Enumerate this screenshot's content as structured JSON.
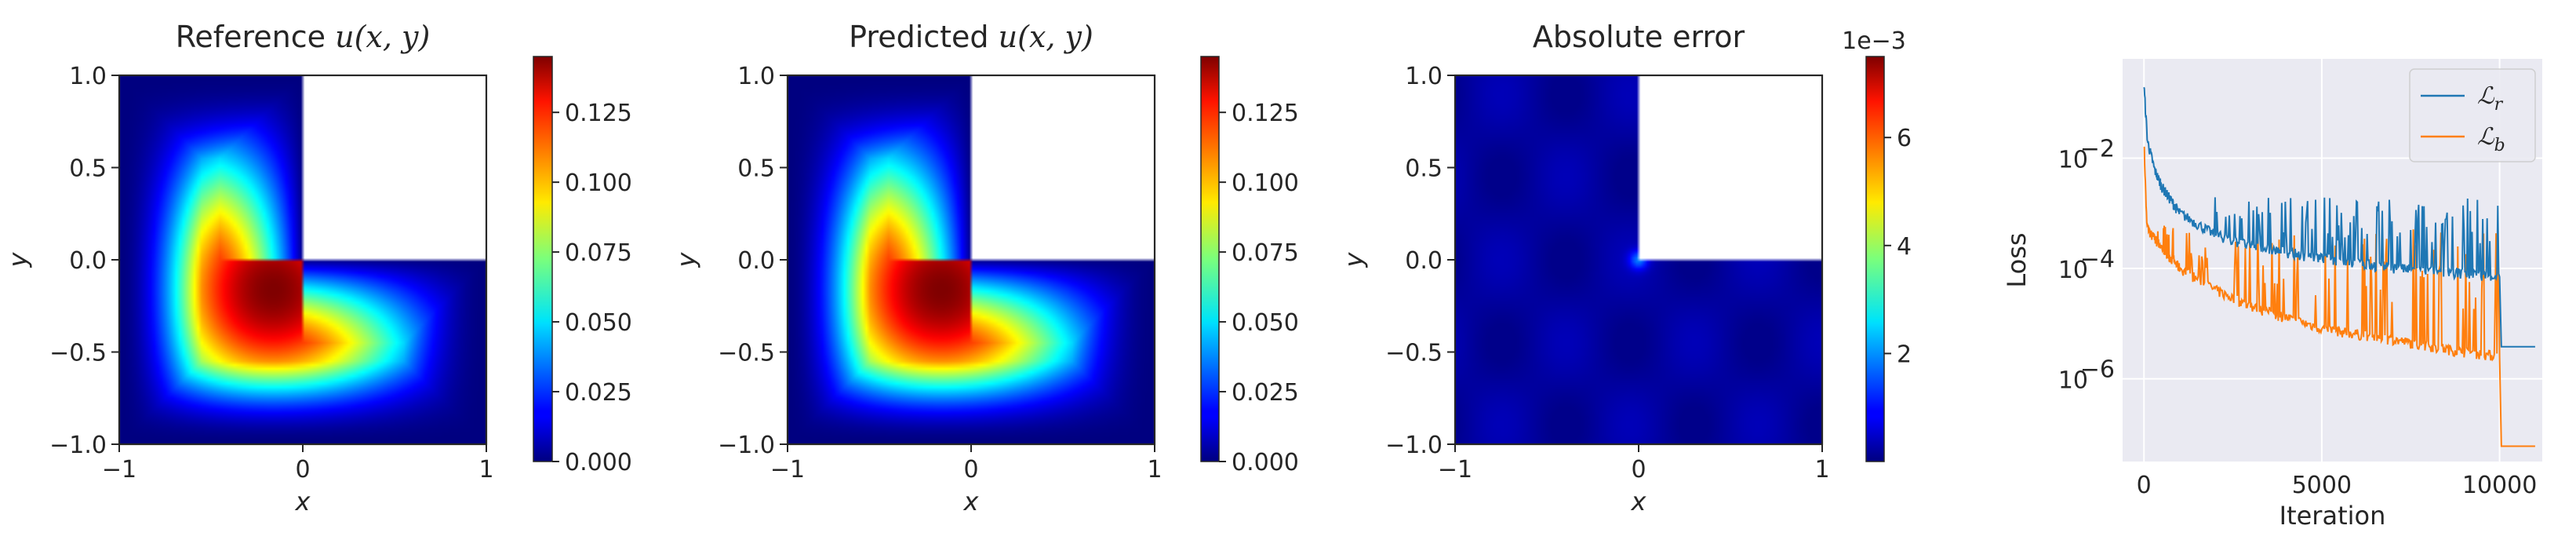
{
  "chart_data": [
    {
      "type": "heatmap",
      "title": "Reference u(x, y)",
      "title_parts": {
        "prefix": "Reference ",
        "math": "u(x, y)"
      },
      "xlabel": "x",
      "ylabel": "y",
      "xlim": [
        -1,
        1
      ],
      "ylim": [
        -1,
        1
      ],
      "xticks": [
        "−1",
        "0",
        "1"
      ],
      "yticks": [
        "1.0",
        "0.5",
        "0.0",
        "−0.5",
        "−1.0"
      ],
      "domain_shape": "L-shaped: [-1,1]x[-1,0] plus [-1,0]x[0,1]",
      "colormap": "jet",
      "colorbar": {
        "min": 0.0,
        "max": 0.145,
        "ticks": [
          0.0,
          0.025,
          0.05,
          0.075,
          0.1,
          0.125
        ],
        "tick_labels": [
          "0.000",
          "0.025",
          "0.050",
          "0.075",
          "0.100",
          "0.125"
        ]
      },
      "peak": {
        "x": -0.35,
        "y": -0.35,
        "value": 0.145
      }
    },
    {
      "type": "heatmap",
      "title": "Predicted u(x, y)",
      "title_parts": {
        "prefix": "Predicted ",
        "math": "u(x, y)"
      },
      "xlabel": "x",
      "ylabel": "y",
      "xlim": [
        -1,
        1
      ],
      "ylim": [
        -1,
        1
      ],
      "xticks": [
        "−1",
        "0",
        "1"
      ],
      "yticks": [
        "1.0",
        "0.5",
        "0.0",
        "−0.5",
        "−1.0"
      ],
      "domain_shape": "L-shaped: [-1,1]x[-1,0] plus [-1,0]x[0,1]",
      "colormap": "jet",
      "colorbar": {
        "min": 0.0,
        "max": 0.145,
        "ticks": [
          0.0,
          0.025,
          0.05,
          0.075,
          0.1,
          0.125
        ],
        "tick_labels": [
          "0.000",
          "0.025",
          "0.050",
          "0.075",
          "0.100",
          "0.125"
        ]
      },
      "peak": {
        "x": -0.35,
        "y": -0.35,
        "value": 0.145
      }
    },
    {
      "type": "heatmap",
      "title": "Absolute error",
      "xlabel": "x",
      "ylabel": "y",
      "xlim": [
        -1,
        1
      ],
      "ylim": [
        -1,
        1
      ],
      "xticks": [
        "−1",
        "0",
        "1"
      ],
      "yticks": [
        "1.0",
        "0.5",
        "0.0",
        "−0.5",
        "−1.0"
      ],
      "domain_shape": "L-shaped: [-1,1]x[-1,0] plus [-1,0]x[0,1]",
      "colormap": "jet",
      "colorbar": {
        "min": 0.0,
        "max": 0.0075,
        "ticks": [
          0.002,
          0.004,
          0.006
        ],
        "tick_labels": [
          "2",
          "4",
          "6"
        ],
        "offset_label": "1e−3"
      },
      "hotspot": {
        "x": 0.0,
        "y": 0.0,
        "value": 0.0015
      },
      "background_value": 0.0002
    },
    {
      "type": "line",
      "xlabel": "Iteration",
      "ylabel": "Loss",
      "xlim": [
        -600,
        11200
      ],
      "ylog": true,
      "ylim_exp": [
        -7.5,
        -0.2
      ],
      "xticks": [
        0,
        5000,
        10000
      ],
      "xtick_labels": [
        "0",
        "5000",
        "10000"
      ],
      "yticks": [
        1e-06,
        0.0001,
        0.01
      ],
      "ytick_labels": [
        "10",
        "10",
        "10"
      ],
      "ytick_exponents": [
        "−6",
        "−4",
        "−2"
      ],
      "grid": true,
      "legend_placement": "top-right",
      "series": [
        {
          "name": "ℒr",
          "legend": {
            "main": "ℒ",
            "sub": "r"
          },
          "color": "#1f77b4",
          "points": [
            [
              0,
              0.2
            ],
            [
              100,
              0.02
            ],
            [
              300,
              0.006
            ],
            [
              500,
              0.003
            ],
            [
              1000,
              0.001
            ],
            [
              2000,
              0.0004
            ],
            [
              3000,
              0.00025
            ],
            [
              5000,
              0.00015
            ],
            [
              7000,
              0.0001
            ],
            [
              9000,
              8e-05
            ],
            [
              10000,
              7e-05
            ],
            [
              10050,
              3.8e-06
            ],
            [
              11000,
              3.8e-06
            ]
          ],
          "spike_range": [
            2000,
            10000
          ],
          "spike_max": 0.002
        },
        {
          "name": "ℒb",
          "legend": {
            "main": "ℒ",
            "sub": "b"
          },
          "color": "#ff7f0e",
          "points": [
            [
              0,
              0.02
            ],
            [
              80,
              0.0006
            ],
            [
              200,
              0.0004
            ],
            [
              600,
              0.0002
            ],
            [
              1000,
              0.0001
            ],
            [
              2000,
              4e-05
            ],
            [
              3000,
              2e-05
            ],
            [
              5000,
              8e-06
            ],
            [
              7000,
              5e-06
            ],
            [
              9000,
              3e-06
            ],
            [
              10000,
              2.5e-06
            ],
            [
              10050,
              6e-08
            ],
            [
              11000,
              6e-08
            ]
          ],
          "spike_range": [
            300,
            10000
          ],
          "spike_max": 0.0006
        }
      ]
    }
  ]
}
